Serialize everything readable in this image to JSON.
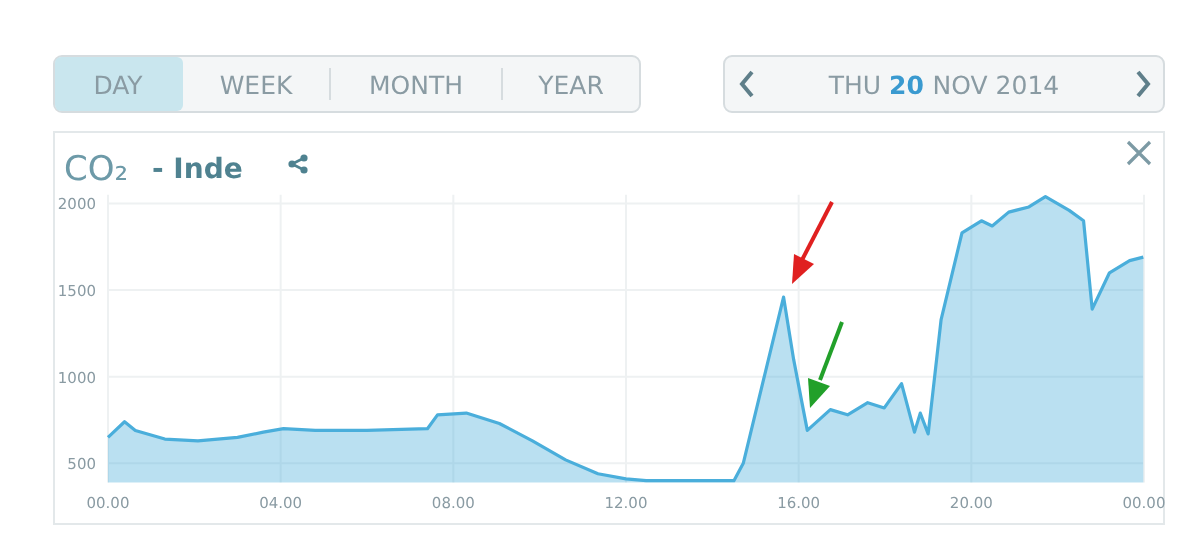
{
  "chart_data": {
    "type": "area",
    "title": "CO₂",
    "subtitle": "- Inde",
    "annotations": [
      "DAY",
      "WEEK",
      "MONTH",
      "YEAR",
      "THU 20 NOV 2014"
    ],
    "x": [
      "2014-11-20T00:00",
      "2014-11-20T00:23",
      "2014-11-20T00:38",
      "2014-11-20T01:19",
      "2014-11-20T02:05",
      "2014-11-20T03:00",
      "2014-11-20T03:36",
      "2014-11-20T04:04",
      "2014-11-20T04:48",
      "2014-11-20T06:00",
      "2014-11-20T07:24",
      "2014-11-20T07:38",
      "2014-11-20T08:18",
      "2014-11-20T09:04",
      "2014-11-20T09:50",
      "2014-11-20T10:36",
      "2014-11-20T11:21",
      "2014-11-20T12:00",
      "2014-11-20T12:28",
      "2014-11-20T13:24",
      "2014-11-20T14:30",
      "2014-11-20T14:43",
      "2014-11-20T15:11",
      "2014-11-20T15:39",
      "2014-11-20T15:53",
      "2014-11-20T16:12",
      "2014-11-20T16:44",
      "2014-11-20T17:08",
      "2014-11-20T17:36",
      "2014-11-20T17:59",
      "2014-11-20T18:23",
      "2014-11-20T18:41",
      "2014-11-20T18:49",
      "2014-11-20T19:00",
      "2014-11-20T19:18",
      "2014-11-20T19:47",
      "2014-11-20T20:14",
      "2014-11-20T20:29",
      "2014-11-20T20:52",
      "2014-11-20T21:20",
      "2014-11-20T21:43",
      "2014-11-20T22:16",
      "2014-11-20T22:36",
      "2014-11-20T22:48",
      "2014-11-20T23:12",
      "2014-11-20T23:40",
      "2014-11-20T23:59"
    ],
    "series": [
      {
        "color": "#4aaedb",
        "values": [
          650,
          740,
          690,
          640,
          630,
          650,
          680,
          700,
          690,
          690,
          700,
          780,
          790,
          730,
          630,
          520,
          440,
          410,
          400,
          400,
          400,
          500,
          980,
          1460,
          1100,
          690,
          810,
          780,
          850,
          820,
          960,
          680,
          790,
          670,
          1330,
          1830,
          1900,
          1870,
          1950,
          1980,
          2040,
          1960,
          1900,
          1390,
          1600,
          1670,
          1690
        ]
      }
    ],
    "xlim": [
      "2014-11-20T00:00",
      "2014-11-21T00:00"
    ],
    "xticks": [
      {
        "value": "2014-11-20T00:00",
        "label": "00.00"
      },
      {
        "value": "2014-11-20T04:00",
        "label": "04.00"
      },
      {
        "value": "2014-11-20T08:00",
        "label": "08.00"
      },
      {
        "value": "2014-11-20T12:00",
        "label": "12.00"
      },
      {
        "value": "2014-11-20T16:00",
        "label": "16.00"
      },
      {
        "value": "2014-11-20T20:00",
        "label": "20.00"
      },
      {
        "value": "2014-11-21T00:00",
        "label": "00.00"
      }
    ],
    "ylim": [
      390,
      2050
    ],
    "yticks": [
      500,
      1000,
      1500,
      2000
    ],
    "grid": true
  }
}
